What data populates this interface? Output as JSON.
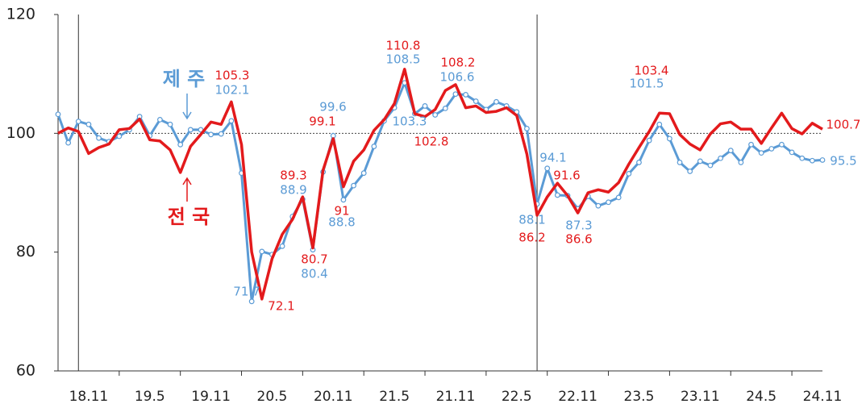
{
  "chart_data": {
    "type": "line",
    "categories": [
      null,
      null,
      null,
      "18.11",
      null,
      null,
      null,
      null,
      null,
      "19.5",
      null,
      null,
      null,
      null,
      null,
      "19.11",
      null,
      null,
      null,
      null,
      null,
      "20.5",
      null,
      null,
      null,
      null,
      null,
      "20.11",
      null,
      null,
      null,
      null,
      null,
      "21.5",
      null,
      null,
      null,
      null,
      null,
      "21.11",
      null,
      null,
      null,
      null,
      null,
      "22.5",
      null,
      null,
      null,
      null,
      null,
      "22.11",
      null,
      null,
      null,
      null,
      null,
      "23.5",
      null,
      null,
      null,
      null,
      null,
      "23.11",
      null,
      null,
      null,
      null,
      null,
      "24.5",
      null,
      null,
      null,
      null,
      null,
      "24.11"
    ],
    "series": [
      {
        "name": "제 주",
        "color": "#5b9bd5",
        "markers": true,
        "values": [
          103.2,
          98.4,
          102.0,
          101.5,
          99.2,
          98.6,
          99.5,
          100.6,
          102.8,
          99.6,
          102.3,
          101.5,
          98.1,
          100.6,
          100.6,
          99.8,
          99.9,
          102.1,
          93.3,
          71.7,
          80.1,
          79.6,
          81.0,
          86.0,
          88.9,
          80.4,
          93.5,
          99.6,
          88.8,
          91.2,
          93.3,
          97.8,
          102.1,
          104.3,
          108.5,
          103.3,
          104.6,
          103.1,
          104.2,
          106.6,
          106.5,
          105.4,
          104.0,
          105.3,
          104.6,
          103.6,
          100.8,
          88.1,
          94.1,
          89.6,
          89.5,
          87.3,
          89.4,
          87.8,
          88.4,
          89.2,
          93.2,
          95.1,
          98.8,
          101.5,
          99.1,
          95.1,
          93.6,
          95.3,
          94.6,
          95.8,
          97.1,
          95.1,
          98.1,
          96.7,
          97.4,
          98.1,
          96.8,
          95.8,
          95.4,
          95.5
        ]
      },
      {
        "name": "전 국",
        "color": "#e31a1c",
        "markers": false,
        "values": [
          100.0,
          100.9,
          100.3,
          96.6,
          97.6,
          98.2,
          100.6,
          100.8,
          102.4,
          98.9,
          98.7,
          97.2,
          93.4,
          97.8,
          99.8,
          101.9,
          101.5,
          105.3,
          98.1,
          80.0,
          72.1,
          78.9,
          83.0,
          85.5,
          89.3,
          80.7,
          93.8,
          99.1,
          91.0,
          95.3,
          97.2,
          100.5,
          102.3,
          105.0,
          110.8,
          103.3,
          102.8,
          104.0,
          107.2,
          108.2,
          104.3,
          104.6,
          103.5,
          103.7,
          104.3,
          103.0,
          96.5,
          86.2,
          89.3,
          91.6,
          89.5,
          86.6,
          90.0,
          90.5,
          90.1,
          91.7,
          94.8,
          97.6,
          100.3,
          103.4,
          103.3,
          99.8,
          98.2,
          97.2,
          99.9,
          101.6,
          101.9,
          100.7,
          100.7,
          98.3,
          100.9,
          103.4,
          100.8,
          99.9,
          101.7,
          100.7
        ]
      }
    ],
    "ylim": [
      60,
      120
    ],
    "yticks": [
      60,
      80,
      100,
      120
    ],
    "reference_line": 100
  }
}
